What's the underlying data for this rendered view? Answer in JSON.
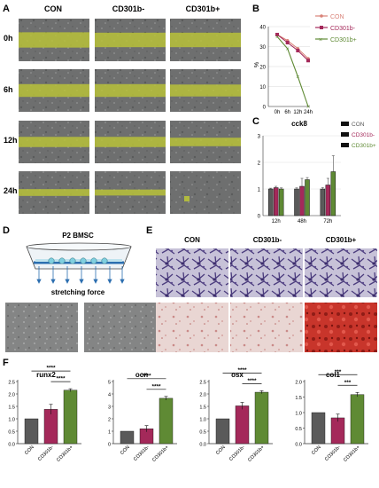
{
  "figure": {
    "panel_letters": [
      "A",
      "B",
      "C",
      "D",
      "E",
      "F"
    ],
    "colors": {
      "con": "#5a5a5a",
      "cd301b_minus": "#a4295a",
      "cd301b_plus": "#5f8a34",
      "scratch": "#b8c23a",
      "legend_con": "#d98278"
    }
  },
  "panel_a": {
    "columns": [
      "CON",
      "CD301b-",
      "CD301b+"
    ],
    "rows": [
      "0h",
      "6h",
      "12h",
      "24h"
    ],
    "band_fraction": [
      [
        0.36,
        0.34,
        0.34
      ],
      [
        0.3,
        0.3,
        0.28
      ],
      [
        0.24,
        0.24,
        0.2
      ],
      [
        0.16,
        0.14,
        0.0
      ]
    ]
  },
  "panel_b": {
    "legend": [
      "CON",
      "CD301b-",
      "CD301b+"
    ],
    "ylabel": "%",
    "chart_data": {
      "type": "line",
      "x": [
        "0h",
        "6h",
        "12h",
        "24h"
      ],
      "ylim": [
        0,
        40
      ],
      "yticks": [
        0,
        10,
        20,
        30,
        40
      ],
      "series": [
        {
          "name": "CON",
          "values": [
            36,
            33,
            29,
            24
          ]
        },
        {
          "name": "CD301b-",
          "values": [
            36,
            32,
            28,
            23
          ]
        },
        {
          "name": "CD301b+",
          "values": [
            35,
            29,
            15,
            0
          ]
        }
      ]
    }
  },
  "panel_c": {
    "title": "cck8",
    "legend": [
      "CON",
      "CD301b-",
      "CD301b+"
    ],
    "chart_data": {
      "type": "bar",
      "categories": [
        "12h",
        "48h",
        "72h"
      ],
      "ylim": [
        0,
        3
      ],
      "yticks": [
        0,
        1,
        2,
        3
      ],
      "series": [
        {
          "name": "CON",
          "values": [
            1.0,
            1.0,
            1.0
          ]
        },
        {
          "name": "CD301b-",
          "values": [
            1.05,
            1.1,
            1.15
          ]
        },
        {
          "name": "CD301b+",
          "values": [
            1.0,
            1.35,
            1.65
          ]
        }
      ],
      "errors": [
        [
          0.03,
          0.04,
          0.05
        ],
        [
          0.05,
          0.3,
          0.25
        ],
        [
          0.04,
          0.08,
          0.6
        ]
      ]
    }
  },
  "panel_d": {
    "title": "P2 BMSC",
    "force_label": "stretching force"
  },
  "panel_e": {
    "columns": [
      "CON",
      "CD301b-",
      "CD301b+"
    ]
  },
  "panel_f": {
    "chart_data": [
      {
        "type": "bar",
        "title": "runx2",
        "categories": [
          "CON",
          "CD301b-",
          "CD301b+"
        ],
        "values": [
          1.0,
          1.38,
          2.15
        ],
        "errors": [
          0,
          0.2,
          0.06
        ],
        "ylim": [
          0,
          2.5
        ],
        "yticks": [
          "0.0",
          "0.5",
          "1.0",
          "1.5",
          "2.0",
          "2.5"
        ],
        "sig": [
          "****",
          "****"
        ]
      },
      {
        "type": "bar",
        "title": "ocn",
        "categories": [
          "CON",
          "CD301b-",
          "CD301b+"
        ],
        "values": [
          1.0,
          1.2,
          3.65
        ],
        "errors": [
          0,
          0.25,
          0.15
        ],
        "ylim": [
          0,
          5
        ],
        "yticks": [
          "0",
          "1",
          "2",
          "3",
          "4",
          "5"
        ],
        "sig": [
          "****",
          "****"
        ]
      },
      {
        "type": "bar",
        "title": "osx",
        "categories": [
          "CON",
          "CD301b-",
          "CD301b+"
        ],
        "values": [
          1.0,
          1.52,
          2.07
        ],
        "errors": [
          0,
          0.14,
          0.06
        ],
        "ylim": [
          0,
          2.5
        ],
        "yticks": [
          "0.0",
          "0.5",
          "1.0",
          "1.5",
          "2.0",
          "2.5"
        ],
        "sig": [
          "****",
          "****"
        ]
      },
      {
        "type": "bar",
        "title": "col1",
        "categories": [
          "CON",
          "CD301b-",
          "CD301b+"
        ],
        "values": [
          1.0,
          0.83,
          1.58
        ],
        "errors": [
          0,
          0.12,
          0.07
        ],
        "ylim": [
          0,
          2.0
        ],
        "yticks": [
          "0.0",
          "0.5",
          "1.0",
          "1.5",
          "2.0"
        ],
        "sig": [
          "***",
          "***"
        ]
      }
    ]
  }
}
